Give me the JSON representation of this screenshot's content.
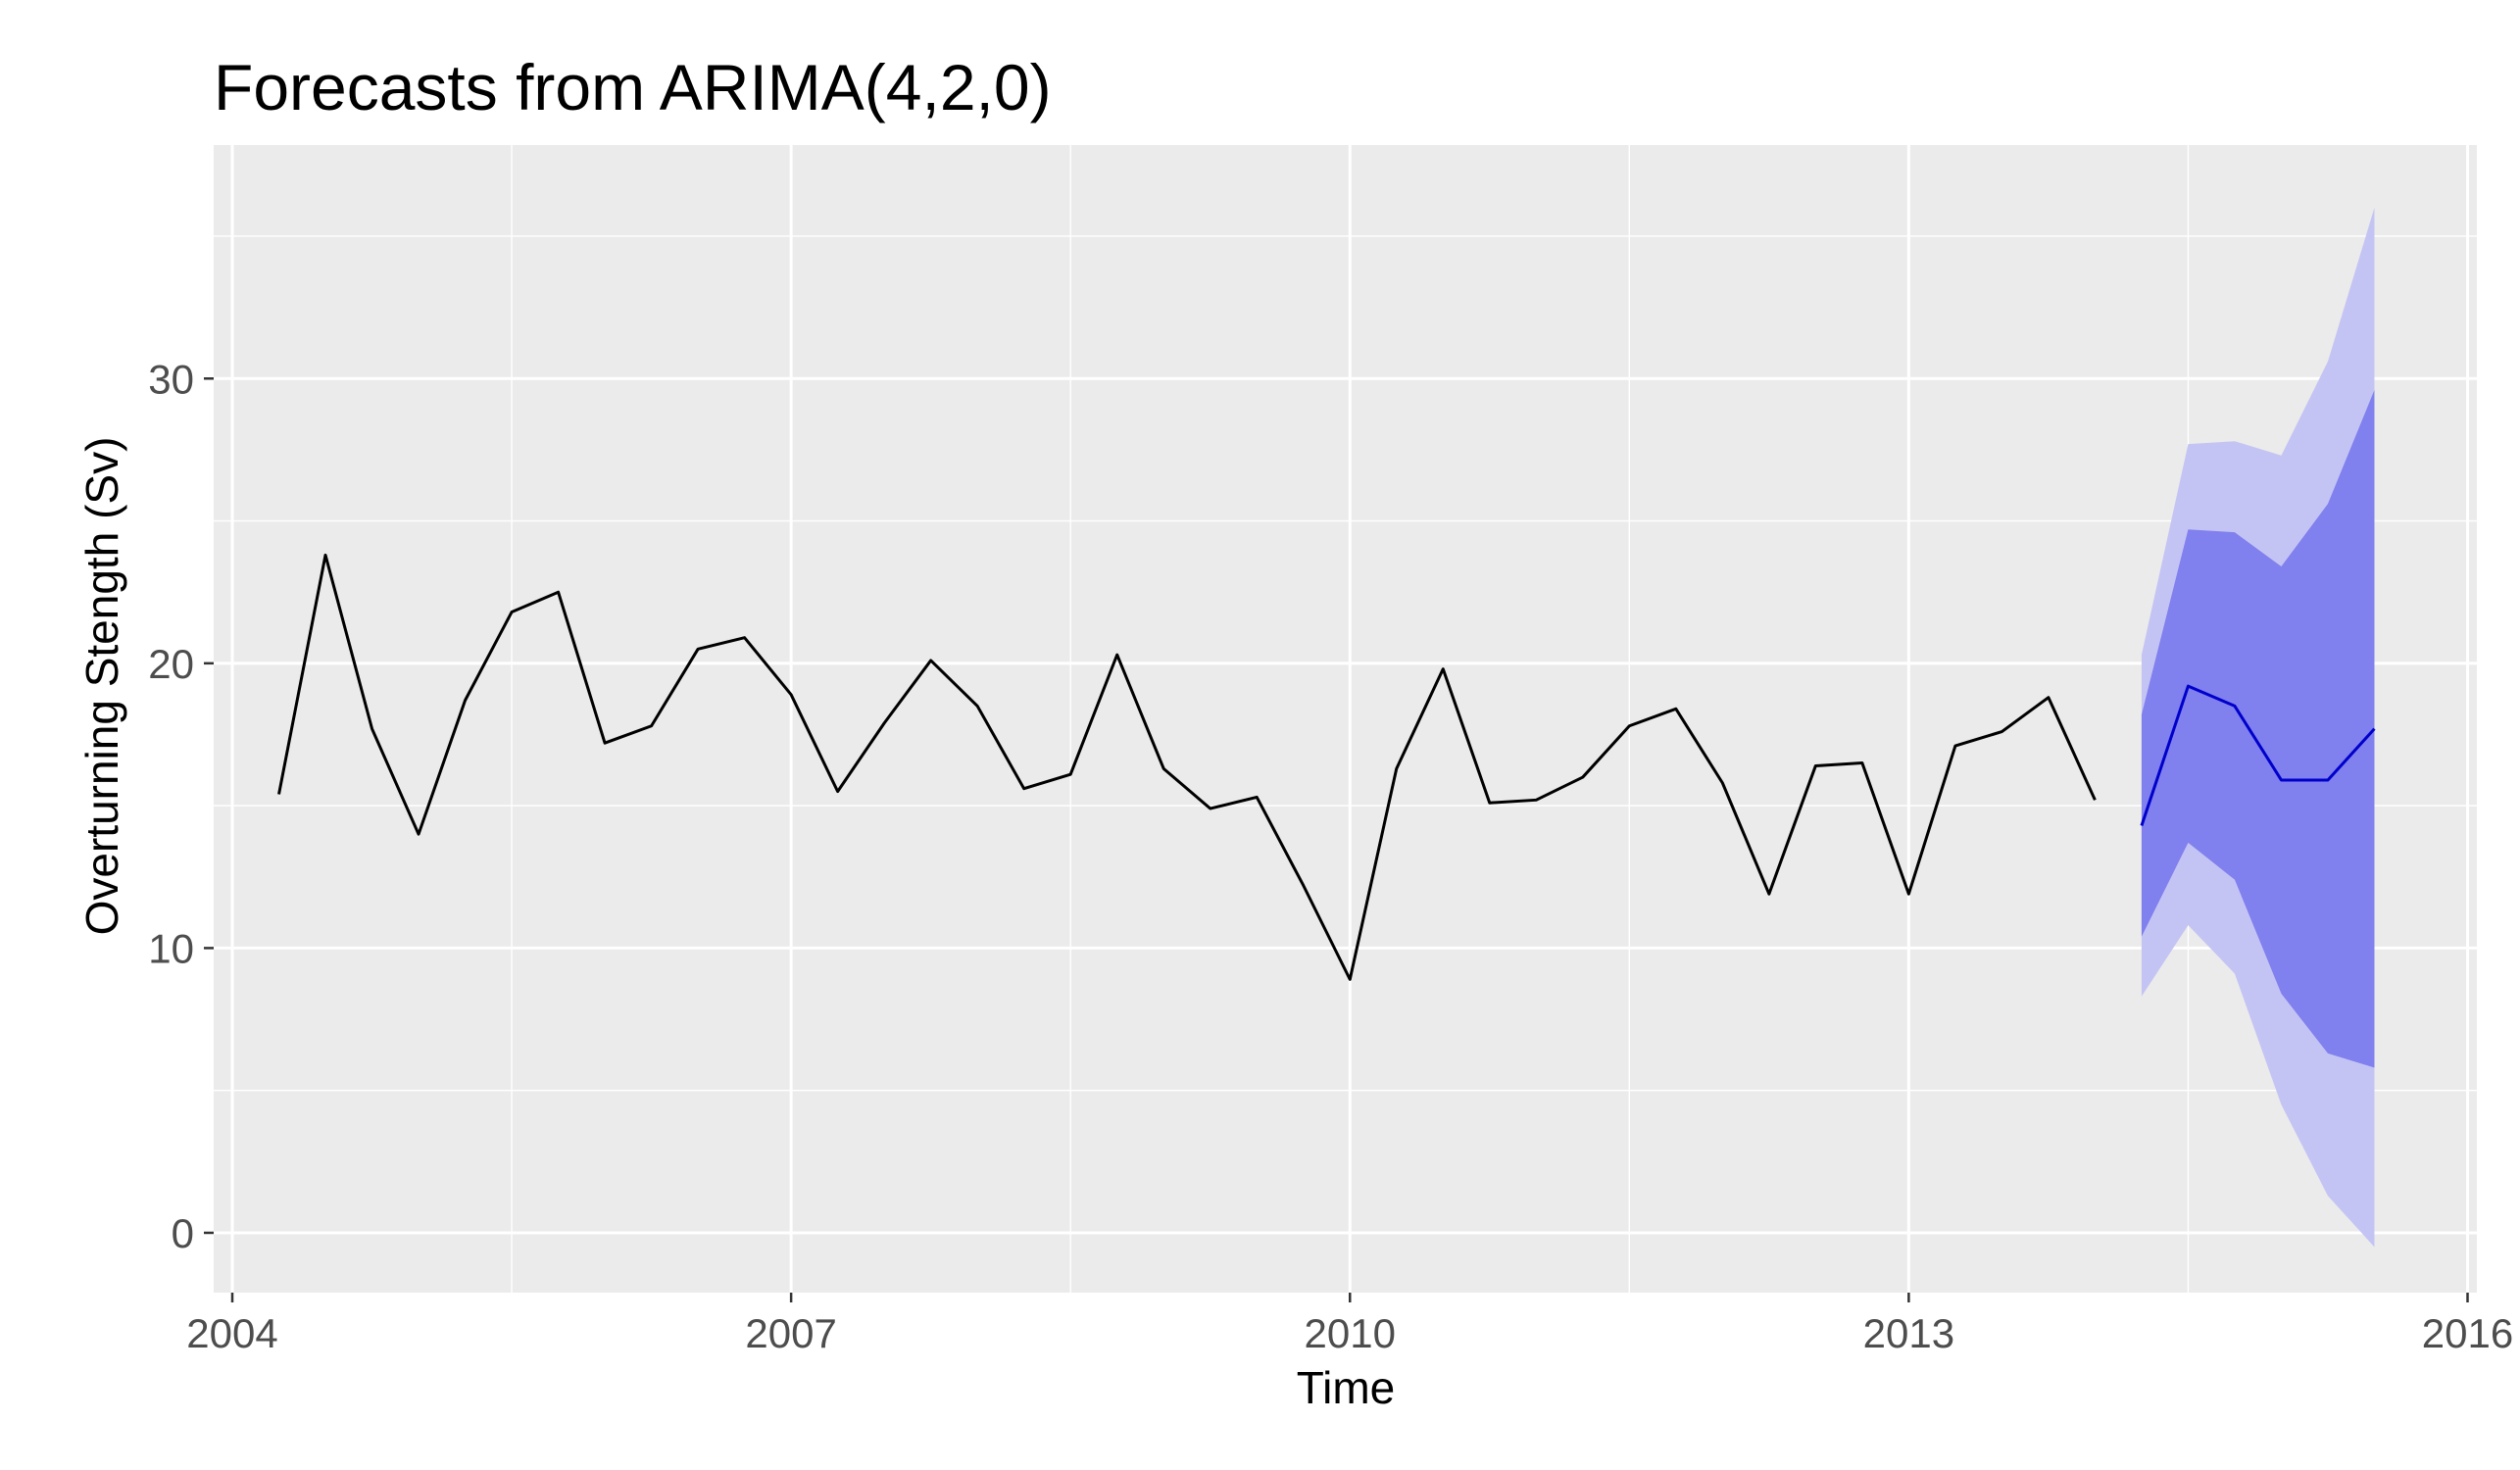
{
  "chart_data": {
    "type": "line",
    "title": "Forecasts from ARIMA(4,2,0)",
    "xlabel": "Time",
    "ylabel": "Overturning Stength (Sv)",
    "xlim": [
      2003.9,
      2016.05
    ],
    "ylim": [
      -2.1,
      38.2
    ],
    "x_ticks": [
      2004,
      2007,
      2010,
      2013,
      2016
    ],
    "y_ticks": [
      0,
      10,
      20,
      30
    ],
    "grid": true,
    "legend": "none",
    "colors": {
      "panel": "#ebebeb",
      "grid_major": "#ffffff",
      "observed": "#000000",
      "forecast": "#0000cc",
      "band_95": "#c4c4f4",
      "band_80": "#8080ee"
    },
    "series": [
      {
        "role": "observed",
        "x": [
          2004.25,
          2004.5,
          2004.75,
          2005.0,
          2005.25,
          2005.5,
          2005.75,
          2006.0,
          2006.25,
          2006.5,
          2006.75,
          2007.0,
          2007.25,
          2007.5,
          2007.75,
          2008.0,
          2008.25,
          2008.5,
          2008.75,
          2009.0,
          2009.25,
          2009.5,
          2009.75,
          2010.0,
          2010.25,
          2010.5,
          2010.75,
          2011.0,
          2011.25,
          2011.5,
          2011.75,
          2012.0,
          2012.25,
          2012.5,
          2012.75,
          2013.0,
          2013.25,
          2013.5,
          2013.75,
          2014.0
        ],
        "values": [
          15.4,
          23.8,
          17.7,
          14.0,
          18.7,
          21.8,
          22.5,
          17.2,
          17.8,
          20.5,
          20.9,
          18.9,
          15.5,
          17.9,
          20.1,
          18.5,
          15.6,
          16.1,
          20.3,
          16.3,
          14.9,
          15.3,
          12.2,
          8.9,
          16.3,
          19.8,
          15.1,
          15.2,
          16.0,
          17.8,
          18.4,
          15.8,
          11.9,
          16.4,
          16.5,
          11.9,
          17.1,
          17.6,
          18.8,
          15.2
        ]
      },
      {
        "role": "forecast",
        "x": [
          2014.25,
          2014.5,
          2014.75,
          2015.0,
          2015.25,
          2015.5
        ],
        "values": [
          14.3,
          19.2,
          18.5,
          15.9,
          15.9,
          17.7
        ]
      }
    ],
    "intervals": [
      {
        "level": 95,
        "x": [
          2014.25,
          2014.5,
          2014.75,
          2015.0,
          2015.25,
          2015.5
        ],
        "lower": [
          8.3,
          10.8,
          9.1,
          4.5,
          1.3,
          -0.5
        ],
        "upper": [
          20.3,
          27.7,
          27.8,
          27.3,
          30.6,
          36.0
        ]
      },
      {
        "level": 80,
        "x": [
          2014.25,
          2014.5,
          2014.75,
          2015.0,
          2015.25,
          2015.5
        ],
        "lower": [
          10.4,
          13.7,
          12.4,
          8.4,
          6.3,
          5.8
        ],
        "upper": [
          18.2,
          24.7,
          24.6,
          23.4,
          25.6,
          29.6
        ]
      }
    ]
  }
}
